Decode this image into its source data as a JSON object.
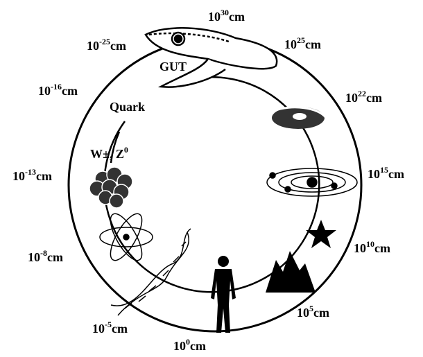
{
  "scale_labels": [
    {
      "base": "10",
      "exponent": "30",
      "unit": "cm"
    },
    {
      "base": "10",
      "exponent": "25",
      "unit": "cm"
    },
    {
      "base": "10",
      "exponent": "22",
      "unit": "cm"
    },
    {
      "base": "10",
      "exponent": "15",
      "unit": "cm"
    },
    {
      "base": "10",
      "exponent": "10",
      "unit": "cm"
    },
    {
      "base": "10",
      "exponent": "5",
      "unit": "cm"
    },
    {
      "base": "10",
      "exponent": "0",
      "unit": "cm"
    },
    {
      "base": "10",
      "exponent": "-5",
      "unit": "cm"
    },
    {
      "base": "10",
      "exponent": "-8",
      "unit": "cm"
    },
    {
      "base": "10",
      "exponent": "-13",
      "unit": "cm"
    },
    {
      "base": "10",
      "exponent": "-16",
      "unit": "cm"
    },
    {
      "base": "10",
      "exponent": "-25",
      "unit": "cm"
    }
  ],
  "inner_labels": {
    "gut": "GUT",
    "quark": "Quark",
    "boson": {
      "text": "W±, Z",
      "sup": "0"
    }
  }
}
